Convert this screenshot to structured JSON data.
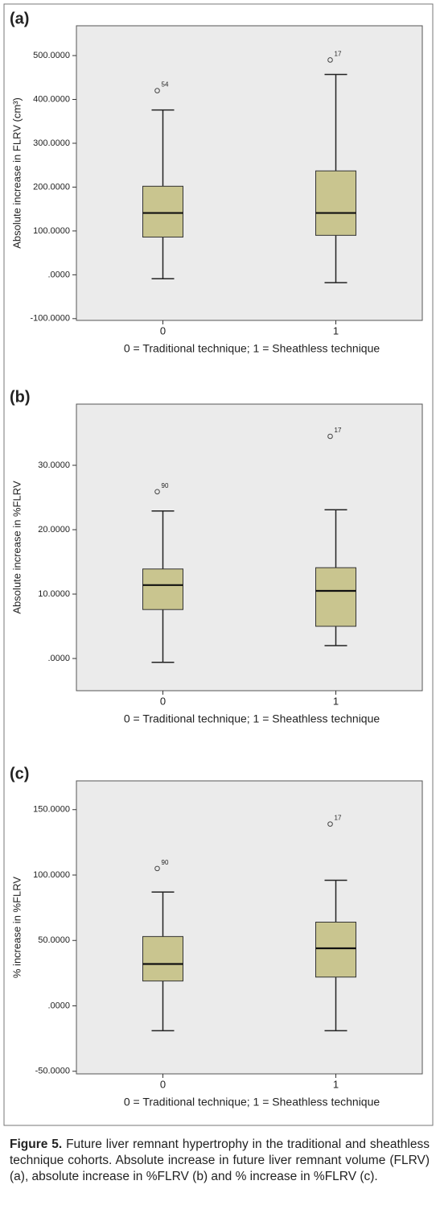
{
  "chart_data": [
    {
      "type": "box",
      "panel": "(a)",
      "y_label": "Absolute increase in FLRV (cm³)",
      "x_label": "0 = Traditional technique; 1 = Sheathless technique",
      "categories": [
        "0",
        "1"
      ],
      "boxes": [
        {
          "whisker_low": -9,
          "q1": 86,
          "median": 141,
          "q3": 202,
          "whisker_high": 376,
          "outliers": [
            {
              "value": 420,
              "label": "54"
            }
          ]
        },
        {
          "whisker_low": -18,
          "q1": 90,
          "median": 141,
          "q3": 237,
          "whisker_high": 457,
          "outliers": [
            {
              "value": 490,
              "label": "17"
            }
          ]
        }
      ],
      "color": "#c9c58f",
      "ylim": [
        -104,
        568
      ],
      "yticks": [
        {
          "value": -100,
          "label": "-100.0000"
        },
        {
          "value": 0,
          "label": ".0000"
        },
        {
          "value": 100,
          "label": "100.0000"
        },
        {
          "value": 200,
          "label": "200.0000"
        },
        {
          "value": 300,
          "label": "300.0000"
        },
        {
          "value": 400,
          "label": "400.0000"
        },
        {
          "value": 500,
          "label": "500.0000"
        }
      ]
    },
    {
      "type": "box",
      "panel": "(b)",
      "y_label": "Absolute increase in %FLRV",
      "x_label": "0 = Traditional technique; 1 = Sheathless technique",
      "categories": [
        "0",
        "1"
      ],
      "boxes": [
        {
          "whisker_low": -0.6,
          "q1": 7.6,
          "median": 11.4,
          "q3": 13.9,
          "whisker_high": 22.9,
          "outliers": [
            {
              "value": 25.9,
              "label": "90"
            }
          ]
        },
        {
          "whisker_low": 2.0,
          "q1": 5.0,
          "median": 10.5,
          "q3": 14.1,
          "whisker_high": 23.1,
          "outliers": [
            {
              "value": 34.5,
              "label": "17"
            }
          ]
        }
      ],
      "color": "#c9c58f",
      "ylim": [
        -5,
        39.5
      ],
      "yticks": [
        {
          "value": 0,
          "label": ".0000"
        },
        {
          "value": 10,
          "label": "10.0000"
        },
        {
          "value": 20,
          "label": "20.0000"
        },
        {
          "value": 30,
          "label": "30.0000"
        }
      ]
    },
    {
      "type": "box",
      "panel": "(c)",
      "y_label": "% increase in %FLRV",
      "x_label": "0 = Traditional technique; 1 = Sheathless technique",
      "categories": [
        "0",
        "1"
      ],
      "boxes": [
        {
          "whisker_low": -19,
          "q1": 19,
          "median": 32,
          "q3": 53,
          "whisker_high": 87,
          "outliers": [
            {
              "value": 105,
              "label": "90"
            }
          ]
        },
        {
          "whisker_low": -19,
          "q1": 22,
          "median": 44,
          "q3": 64,
          "whisker_high": 96,
          "outliers": [
            {
              "value": 139,
              "label": "17"
            }
          ]
        }
      ],
      "color": "#c9c58f",
      "ylim": [
        -52,
        172
      ],
      "yticks": [
        {
          "value": -50,
          "label": "-50.0000"
        },
        {
          "value": 0,
          "label": ".0000"
        },
        {
          "value": 50,
          "label": "50.0000"
        },
        {
          "value": 100,
          "label": "100.0000"
        },
        {
          "value": 150,
          "label": "150.0000"
        }
      ]
    }
  ],
  "caption": {
    "label": "Figure 5.",
    "text": "Future liver remnant hypertrophy in the traditional and sheathless technique cohorts. Absolute increase in future liver remnant volume (FLRV) (a), absolute increase in %FLRV (b) and % increase in %FLRV (c)."
  }
}
